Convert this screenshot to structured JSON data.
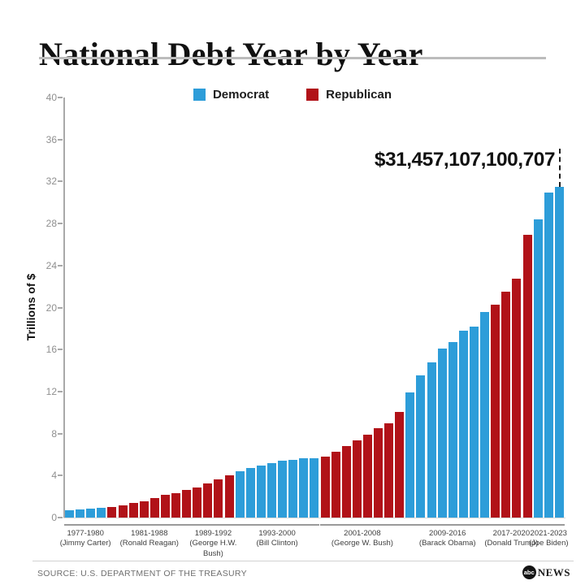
{
  "header": {
    "title": "National Debt Year by Year"
  },
  "legend": {
    "democrat": {
      "label": "Democrat",
      "color": "#2D9DD9"
    },
    "republican": {
      "label": "Republican",
      "color": "#B11218"
    }
  },
  "callout": {
    "text": "$31,457,107,100,707"
  },
  "chart_data": {
    "type": "bar",
    "title": "National Debt Year by Year",
    "xlabel": "",
    "ylabel": "Trillions of $",
    "ylim": [
      0,
      40
    ],
    "yticks": [
      0,
      4,
      8,
      12,
      16,
      20,
      24,
      28,
      32,
      36,
      40
    ],
    "grid": false,
    "legend_position": "top",
    "unit": "trillions of US dollars",
    "series_colors": {
      "Democrat": "#2D9DD9",
      "Republican": "#B11218"
    },
    "groups": [
      {
        "years": "1977-1980",
        "president": "(Jimmy Carter)",
        "party": "Democrat",
        "start_year": 1977,
        "values": [
          0.7,
          0.77,
          0.83,
          0.91
        ]
      },
      {
        "years": "1981-1988",
        "president": "(Ronald Reagan)",
        "party": "Republican",
        "start_year": 1981,
        "values": [
          1.0,
          1.14,
          1.38,
          1.57,
          1.82,
          2.13,
          2.35,
          2.6
        ]
      },
      {
        "years": "1989-1992",
        "president": "(George H.W. Bush)",
        "party": "Republican",
        "start_year": 1989,
        "values": [
          2.86,
          3.23,
          3.67,
          4.06
        ]
      },
      {
        "years": "1993-2000",
        "president": "(Bill Clinton)",
        "party": "Democrat",
        "start_year": 1993,
        "values": [
          4.41,
          4.69,
          4.97,
          5.22,
          5.41,
          5.53,
          5.66,
          5.67
        ]
      },
      {
        "years": "2001-2008",
        "president": "(George W. Bush)",
        "party": "Republican",
        "start_year": 2001,
        "values": [
          5.81,
          6.23,
          6.78,
          7.38,
          7.93,
          8.51,
          9.01,
          10.02
        ]
      },
      {
        "years": "2009-2016",
        "president": "(Barack Obama)",
        "party": "Democrat",
        "start_year": 2009,
        "values": [
          11.91,
          13.56,
          14.79,
          16.07,
          16.74,
          17.82,
          18.15,
          19.57
        ]
      },
      {
        "years": "2017-2020",
        "president": "(Donald Trump)",
        "party": "Republican",
        "start_year": 2017,
        "values": [
          20.24,
          21.52,
          22.72,
          26.95
        ]
      },
      {
        "years": "2021-2023",
        "president": "(Joe Biden)",
        "party": "Democrat",
        "start_year": 2021,
        "values": [
          28.43,
          30.93,
          31.46
        ]
      }
    ],
    "annotation": {
      "text": "$31,457,107,100,707",
      "points_to_year": 2023,
      "value_trillions": 31.46
    }
  },
  "footer": {
    "source": "SOURCE: U.S. DEPARTMENT OF THE TREASURY",
    "logo_abc": "abc",
    "logo_news": "NEWS"
  }
}
